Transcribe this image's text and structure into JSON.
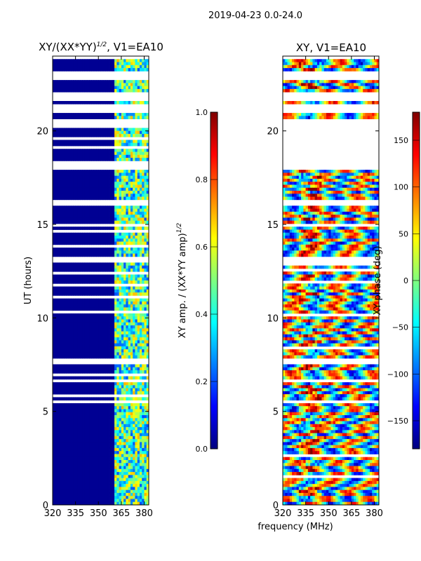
{
  "figure": {
    "suptitle": "2019-04-23 0.0-24.0",
    "xlabel_shared": "frequency (MHz)"
  },
  "colors": {
    "jet": [
      "#00007f",
      "#0000ff",
      "#007fff",
      "#00ffff",
      "#7fff7f",
      "#ffff00",
      "#ff7f00",
      "#ff0000",
      "#7f0000"
    ],
    "flag": "#ffffff",
    "axis": "#000000"
  },
  "chart_data": [
    {
      "type": "heatmap",
      "title": "XY/(XX*YY)",
      "title_exponent": "1/2",
      "title_suffix": ", V1=EA10",
      "xlabel": "",
      "ylabel": "UT (hours)",
      "xlim": [
        320,
        383
      ],
      "ylim": [
        0,
        24
      ],
      "xticks": [
        320,
        335,
        350,
        365,
        380
      ],
      "yticks": [
        0,
        5,
        10,
        15,
        20
      ],
      "grid": false,
      "flagged_ut_ranges": [
        [
          16.0,
          16.3
        ],
        [
          18.0,
          18.4
        ],
        [
          20.1,
          20.7
        ],
        [
          20.9,
          21.4
        ],
        [
          21.6,
          22.1
        ],
        [
          22.7,
          23.2
        ],
        [
          23.8,
          24.0
        ],
        [
          14.8,
          15.0
        ],
        [
          13.0,
          13.2
        ],
        [
          7.6,
          7.8
        ],
        [
          6.6,
          6.8
        ]
      ],
      "notable_features": {
        "low_band_mhz": [
          320,
          360
        ],
        "low_band_value": 0.02,
        "high_band_mhz": [
          361,
          383
        ],
        "high_band_value_range": [
          0.2,
          0.7
        ]
      },
      "colorbar": {
        "label": "XY amp. / (XX*YY amp)",
        "label_exponent": "1/2",
        "range": [
          0.0,
          1.0
        ],
        "ticks": [
          "0.0",
          "0.2",
          "0.4",
          "0.6",
          "0.8",
          "1.0"
        ]
      }
    },
    {
      "type": "heatmap",
      "title": "XY, V1=EA10",
      "xlabel": "frequency (MHz)",
      "ylabel": "",
      "xlim": [
        320,
        383
      ],
      "ylim": [
        0,
        24
      ],
      "xticks": [
        320,
        335,
        350,
        365,
        380
      ],
      "yticks": [
        0,
        5,
        10,
        15,
        20
      ],
      "grid": false,
      "flagged_ut_ranges": [
        [
          16.0,
          16.3
        ],
        [
          18.0,
          18.4
        ],
        [
          18.4,
          20.7
        ],
        [
          20.9,
          21.4
        ],
        [
          21.6,
          22.1
        ],
        [
          22.7,
          23.2
        ],
        [
          23.8,
          24.0
        ],
        [
          14.8,
          15.0
        ],
        [
          13.0,
          13.2
        ],
        [
          7.6,
          7.8
        ],
        [
          6.6,
          6.8
        ]
      ],
      "notable_features": {
        "value_range": [
          -180,
          180
        ],
        "warm_band_mhz": [
          330,
          345
        ]
      },
      "colorbar": {
        "label": "XY phase (deg)",
        "range": [
          -180,
          180
        ],
        "ticks": [
          "−150",
          "−100",
          "−50",
          "0",
          "50",
          "100",
          "150"
        ]
      }
    }
  ]
}
